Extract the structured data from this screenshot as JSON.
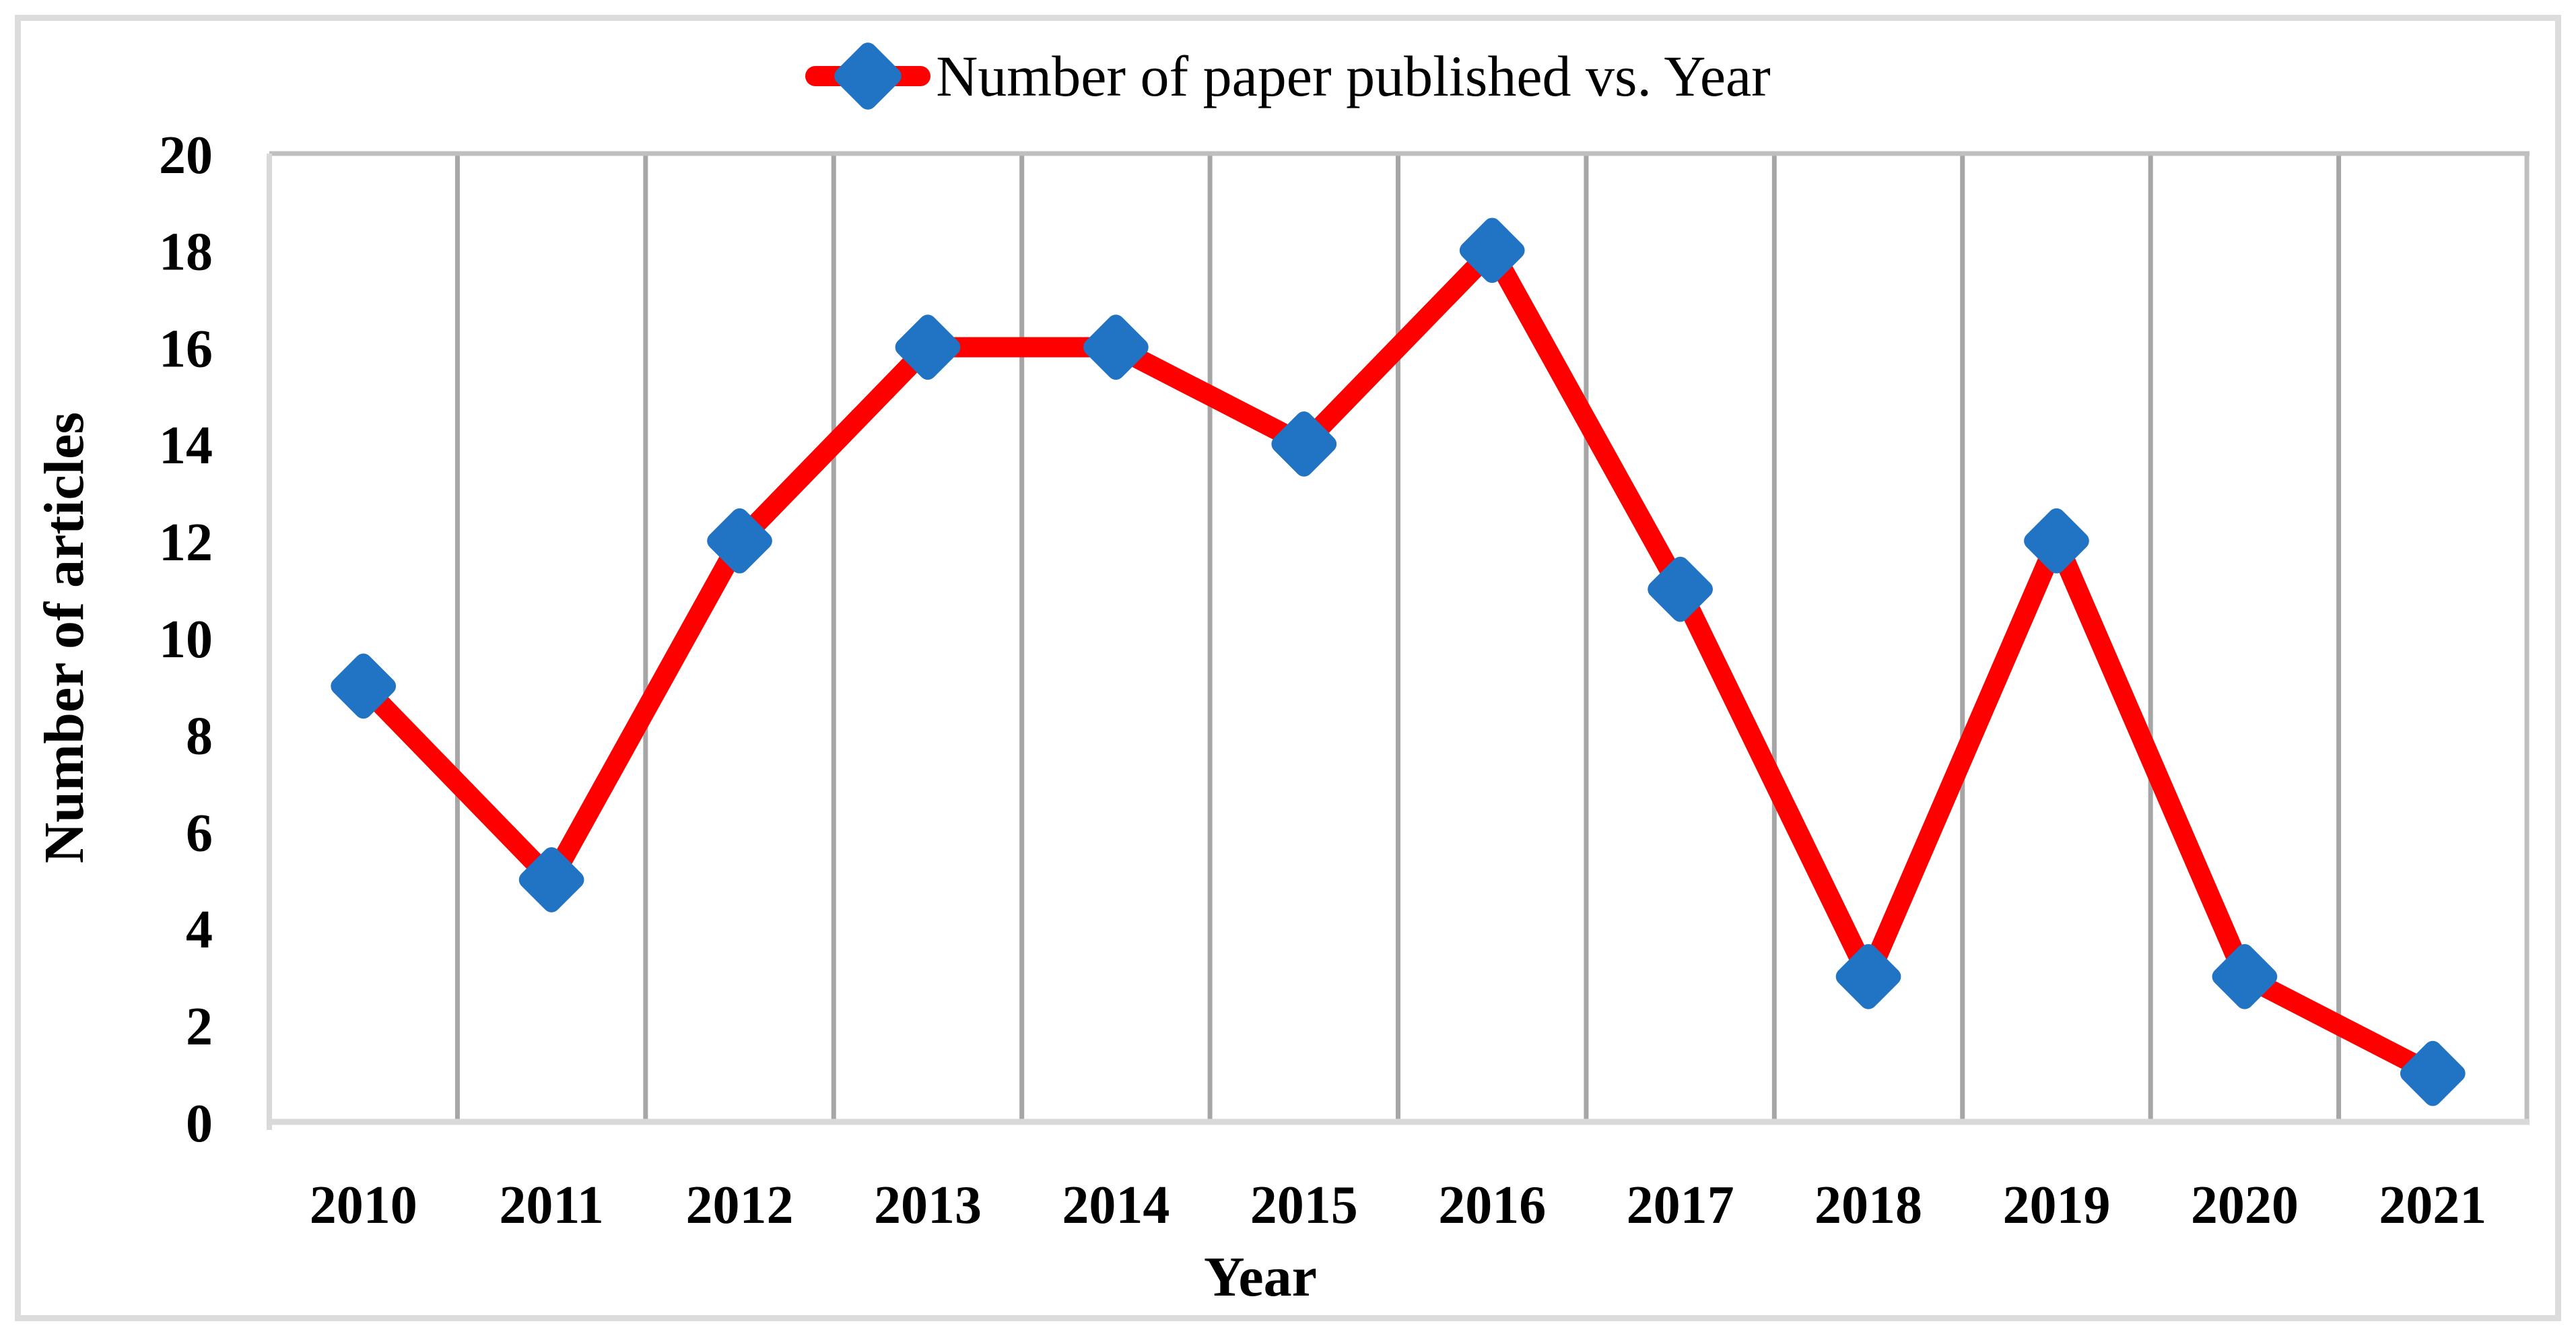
{
  "figure": {
    "legend_label": "Number of paper published vs. Year",
    "y_axis_title": "Number of articles",
    "x_axis_title": "Year"
  },
  "chart_data": {
    "type": "line",
    "title": "Number of paper published vs. Year",
    "categories": [
      "2010",
      "2011",
      "2012",
      "2013",
      "2014",
      "2015",
      "2016",
      "2017",
      "2018",
      "2019",
      "2020",
      "2021"
    ],
    "series": [
      {
        "name": "Number of paper published vs. Year",
        "values": [
          9,
          5,
          12,
          16,
          16,
          14,
          18,
          11,
          3,
          12,
          3,
          1
        ]
      }
    ],
    "xlabel": "Year",
    "ylabel": "Number of articles",
    "ylim": [
      0,
      20
    ],
    "ytick_step": 2,
    "yticks": [
      0,
      2,
      4,
      6,
      8,
      10,
      12,
      14,
      16,
      18,
      20
    ],
    "grid": "vertical-only",
    "legend_position": "top-center",
    "marker": "diamond",
    "colors": {
      "line": "#FF0000",
      "marker": "#2173C4",
      "gridline": "#A6A6A6",
      "axis_line": "#D9D9D9",
      "plot_frame": "#BFBFBF",
      "figure_border": "#DCDCDC",
      "text": "#000000"
    }
  }
}
